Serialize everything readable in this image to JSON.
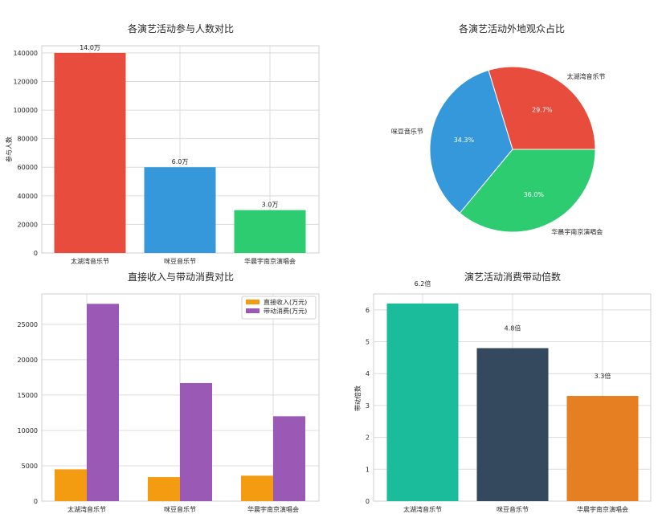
{
  "chart_data": [
    {
      "type": "bar",
      "title": "各演艺活动参与人数对比",
      "xlabel": "",
      "ylabel": "参与人数",
      "categories": [
        "太湖湾音乐节",
        "咪豆音乐节",
        "华晨宇南京演唱会"
      ],
      "values": [
        140000,
        60000,
        30000
      ],
      "data_labels": [
        "14.0万",
        "6.0万",
        "3.0万"
      ],
      "ylim": [
        0,
        145000
      ],
      "yticks": [
        0,
        20000,
        40000,
        60000,
        80000,
        100000,
        120000,
        140000
      ],
      "colors": [
        "#e74c3c",
        "#3498db",
        "#2ecc71"
      ],
      "grid": true
    },
    {
      "type": "pie",
      "title": "各演艺活动外地观众占比",
      "labels": [
        "太湖湾音乐节",
        "咪豆音乐节",
        "华晨宇南京演唱会"
      ],
      "values": [
        29.7,
        34.3,
        36.0
      ],
      "pct_labels": [
        "29.7%",
        "34.3%",
        "36.0%"
      ],
      "colors": [
        "#e74c3c",
        "#3498db",
        "#2ecc71"
      ]
    },
    {
      "type": "bar",
      "title": "直接收入与带动消费对比",
      "xlabel": "",
      "ylabel": "",
      "categories": [
        "太湖湾音乐节",
        "咪豆音乐节",
        "华晨宇南京演唱会"
      ],
      "series": [
        {
          "name": "直接收入(万元)",
          "values": [
            4500,
            3400,
            3600
          ],
          "color": "#f39c12"
        },
        {
          "name": "带动消费(万元)",
          "values": [
            27900,
            16700,
            12000
          ],
          "color": "#9b59b6"
        }
      ],
      "ylim": [
        0,
        29300
      ],
      "yticks": [
        0,
        5000,
        10000,
        15000,
        20000,
        25000
      ],
      "legend": "top-right",
      "grid": true
    },
    {
      "type": "bar",
      "title": "演艺活动消费带动倍数",
      "xlabel": "",
      "ylabel": "带动倍数",
      "categories": [
        "太湖湾音乐节",
        "咪豆音乐节",
        "华晨宇南京演唱会"
      ],
      "values": [
        6.2,
        4.8,
        3.3
      ],
      "data_labels": [
        "6.2倍",
        "4.8倍",
        "3.3倍"
      ],
      "ylim": [
        0,
        6.5
      ],
      "yticks": [
        0,
        1,
        2,
        3,
        4,
        5,
        6
      ],
      "colors": [
        "#1abc9c",
        "#34495e",
        "#e67e22"
      ],
      "grid": true
    }
  ]
}
